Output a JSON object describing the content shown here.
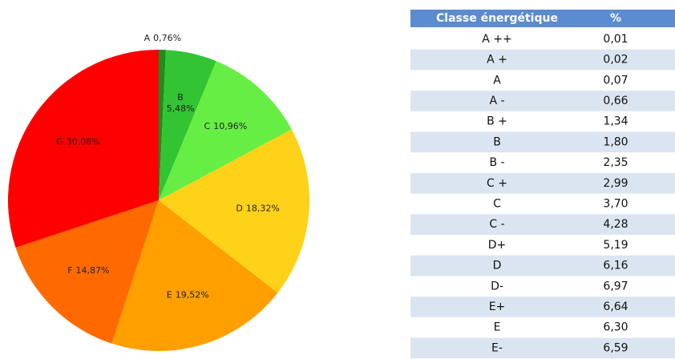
{
  "chart_data": {
    "type": "pie",
    "categories": [
      "A",
      "B",
      "C",
      "D",
      "E",
      "F",
      "G"
    ],
    "values": [
      0.76,
      5.48,
      10.96,
      18.32,
      19.52,
      14.87,
      30.08
    ],
    "value_labels": [
      "0,76%",
      "5,48%",
      "10,96%",
      "18,32%",
      "19,52%",
      "14,87%",
      "30,08%"
    ],
    "colors": [
      "#1e8c1e",
      "#33c433",
      "#66ee44",
      "#ffd21a",
      "#ff9f00",
      "#ff6a00",
      "#ff0000"
    ]
  },
  "table": {
    "header": [
      "Classe énergétique",
      "%"
    ],
    "rows": [
      [
        "A ++",
        "0,01"
      ],
      [
        "A +",
        "0,02"
      ],
      [
        "A",
        "0,07"
      ],
      [
        "A -",
        "0,66"
      ],
      [
        "B +",
        "1,34"
      ],
      [
        "B",
        "1,80"
      ],
      [
        "B -",
        "2,35"
      ],
      [
        "C +",
        "2,99"
      ],
      [
        "C",
        "3,70"
      ],
      [
        "C -",
        "4,28"
      ],
      [
        "D+",
        "5,19"
      ],
      [
        "D",
        "6,16"
      ],
      [
        "D-",
        "6,97"
      ],
      [
        "E+",
        "6,64"
      ],
      [
        "E",
        "6,30"
      ],
      [
        "E-",
        "6,59"
      ]
    ]
  }
}
